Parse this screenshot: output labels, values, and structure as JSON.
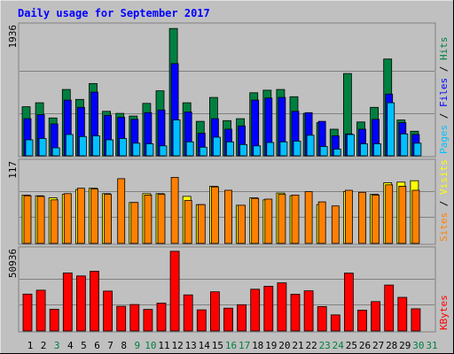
{
  "title": "Daily usage for September 2017",
  "colors": {
    "background": "#c0c0c0",
    "title": "#0000ff",
    "hits": "#008040",
    "files": "#0000ff",
    "pages": "#00c0ff",
    "visits": "#ffff00",
    "sites": "#ff8000",
    "kbytes": "#ff0000",
    "weekday_label": "#000000",
    "weekend_label": "#008040"
  },
  "chart_data": [
    {
      "type": "bar",
      "name": "hits-files-pages",
      "categories": [
        "1",
        "2",
        "3",
        "4",
        "5",
        "6",
        "7",
        "8",
        "9",
        "10",
        "11",
        "12",
        "13",
        "14",
        "15",
        "16",
        "17",
        "18",
        "19",
        "20",
        "21",
        "22",
        "23",
        "24",
        "25",
        "26",
        "27",
        "28",
        "29",
        "30",
        "31"
      ],
      "y_max_label": "1936",
      "ylim": [
        0,
        1936
      ],
      "legend": [
        {
          "label": "Pages",
          "color": "#00c0ff"
        },
        {
          "label": "Files",
          "color": "#0000ff"
        },
        {
          "label": "Hits",
          "color": "#008040"
        }
      ],
      "series": [
        {
          "name": "Hits",
          "values": [
            740,
            800,
            570,
            1000,
            850,
            1090,
            670,
            640,
            600,
            790,
            980,
            1920,
            800,
            520,
            880,
            530,
            560,
            950,
            990,
            1000,
            890,
            640,
            500,
            400,
            1240,
            510,
            730,
            1460,
            540,
            370,
            0
          ]
        },
        {
          "name": "Files",
          "values": [
            560,
            620,
            480,
            840,
            730,
            960,
            610,
            580,
            550,
            650,
            690,
            1390,
            660,
            340,
            560,
            400,
            450,
            840,
            870,
            880,
            670,
            650,
            520,
            300,
            330,
            400,
            550,
            930,
            500,
            320,
            0
          ]
        },
        {
          "name": "Pages",
          "values": [
            240,
            260,
            120,
            320,
            290,
            300,
            240,
            260,
            190,
            180,
            150,
            540,
            210,
            130,
            280,
            210,
            170,
            150,
            200,
            210,
            220,
            310,
            140,
            100,
            320,
            180,
            180,
            800,
            330,
            190,
            0
          ]
        }
      ]
    },
    {
      "type": "bar",
      "name": "visits-sites",
      "categories": [
        "1",
        "2",
        "3",
        "4",
        "5",
        "6",
        "7",
        "8",
        "9",
        "10",
        "11",
        "12",
        "13",
        "14",
        "15",
        "16",
        "17",
        "18",
        "19",
        "20",
        "21",
        "22",
        "23",
        "24",
        "25",
        "26",
        "27",
        "28",
        "29",
        "30",
        "31"
      ],
      "y_max_label": "117",
      "ylim": [
        0,
        117
      ],
      "legend": [
        {
          "label": "Sites",
          "color": "#ff8000"
        },
        {
          "label": "Visits",
          "color": "#ffff00"
        }
      ],
      "series": [
        {
          "name": "Visits",
          "values": [
            71,
            70,
            67,
            72,
            79,
            81,
            73,
            0,
            60,
            73,
            73,
            0,
            69,
            57,
            84,
            0,
            56,
            67,
            64,
            74,
            70,
            0,
            57,
            0,
            76,
            0,
            72,
            89,
            90,
            92,
            0
          ]
        },
        {
          "name": "Sites",
          "values": [
            70,
            69,
            64,
            73,
            81,
            80,
            72,
            95,
            60,
            71,
            72,
            97,
            63,
            57,
            83,
            78,
            56,
            66,
            65,
            72,
            71,
            76,
            61,
            55,
            78,
            75,
            71,
            86,
            84,
            78,
            0
          ]
        }
      ]
    },
    {
      "type": "bar",
      "name": "kbytes",
      "categories": [
        "1",
        "2",
        "3",
        "4",
        "5",
        "6",
        "7",
        "8",
        "9",
        "10",
        "11",
        "12",
        "13",
        "14",
        "15",
        "16",
        "17",
        "18",
        "19",
        "20",
        "21",
        "22",
        "23",
        "24",
        "25",
        "26",
        "27",
        "28",
        "29",
        "30",
        "31"
      ],
      "y_max_label": "50936",
      "ylim": [
        0,
        50936
      ],
      "legend": [
        {
          "label": "KBytes",
          "color": "#ff0000"
        }
      ],
      "series": [
        {
          "name": "KBytes",
          "values": [
            23600,
            26100,
            13900,
            37100,
            35200,
            38200,
            25500,
            15800,
            16900,
            13800,
            17800,
            51000,
            23100,
            13500,
            25100,
            14600,
            16800,
            26700,
            28600,
            30800,
            23500,
            25700,
            15600,
            10300,
            37000,
            13300,
            18800,
            29400,
            21500,
            14200,
            0
          ]
        }
      ]
    }
  ],
  "x_labels": [
    {
      "label": "1",
      "weekend": false
    },
    {
      "label": "2",
      "weekend": false
    },
    {
      "label": "3",
      "weekend": true
    },
    {
      "label": "4",
      "weekend": false
    },
    {
      "label": "5",
      "weekend": false
    },
    {
      "label": "6",
      "weekend": false
    },
    {
      "label": "7",
      "weekend": false
    },
    {
      "label": "8",
      "weekend": false
    },
    {
      "label": "9",
      "weekend": true
    },
    {
      "label": "10",
      "weekend": true
    },
    {
      "label": "11",
      "weekend": false
    },
    {
      "label": "12",
      "weekend": false
    },
    {
      "label": "13",
      "weekend": false
    },
    {
      "label": "14",
      "weekend": false
    },
    {
      "label": "15",
      "weekend": false
    },
    {
      "label": "16",
      "weekend": true
    },
    {
      "label": "17",
      "weekend": true
    },
    {
      "label": "18",
      "weekend": false
    },
    {
      "label": "19",
      "weekend": false
    },
    {
      "label": "20",
      "weekend": false
    },
    {
      "label": "21",
      "weekend": false
    },
    {
      "label": "22",
      "weekend": false
    },
    {
      "label": "23",
      "weekend": true
    },
    {
      "label": "24",
      "weekend": true
    },
    {
      "label": "25",
      "weekend": false
    },
    {
      "label": "26",
      "weekend": false
    },
    {
      "label": "27",
      "weekend": false
    },
    {
      "label": "28",
      "weekend": false
    },
    {
      "label": "29",
      "weekend": false
    },
    {
      "label": "30",
      "weekend": true
    },
    {
      "label": "31",
      "weekend": true
    }
  ]
}
